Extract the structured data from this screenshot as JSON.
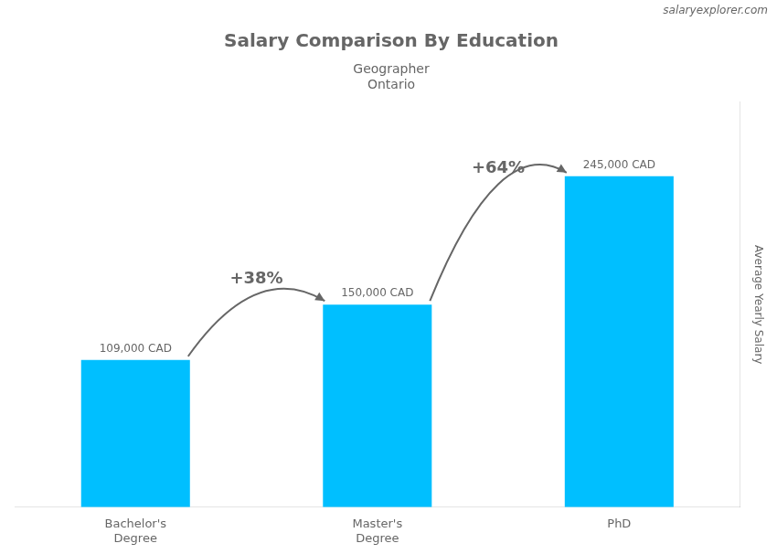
{
  "chart_data": {
    "type": "bar",
    "title": "Salary Comparison By Education",
    "subtitle": [
      "Geographer",
      "Ontario"
    ],
    "watermark": "salaryexplorer.com",
    "ylabel": "Average Yearly Salary",
    "categories": [
      "Bachelor's\nDegree",
      "Master's\nDegree",
      "PhD"
    ],
    "values": [
      109000,
      150000,
      245000
    ],
    "value_labels": [
      "109,000 CAD",
      "150,000 CAD",
      "245,000 CAD"
    ],
    "data_labels": true,
    "annotations": [
      "+38%",
      "+64%"
    ],
    "color": "#00BFFF",
    "ylim": [
      0,
      300000
    ],
    "grid": false,
    "tick_labels": "x"
  }
}
